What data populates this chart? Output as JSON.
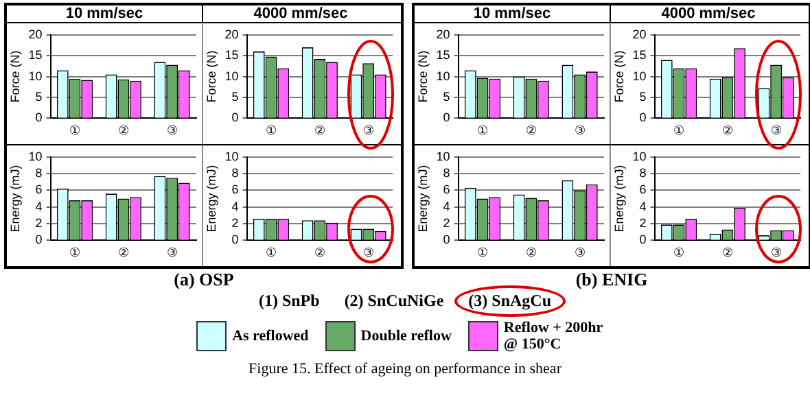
{
  "chart_data": [
    {
      "type": "bar",
      "title": "10 mm/sec",
      "ylabel": "Force (N)",
      "categories": [
        "①",
        "②",
        "③"
      ],
      "ylim": [
        0,
        20
      ],
      "yticks": [
        0,
        5,
        10,
        15,
        20
      ],
      "grid": "y",
      "legend": "bottom",
      "annotations": [
        "(1) SnPb",
        "(2) SnCuNiGe",
        "(3) SnAgCu",
        "Figure 15.  Effect of ageing on performance in shear"
      ],
      "series": [
        {
          "name": "As reflowed",
          "color": "#ccffff",
          "values": [
            11.5,
            10.5,
            13.5
          ]
        },
        {
          "name": "Double reflow",
          "color": "#66aa66",
          "values": [
            9.5,
            9.3,
            12.8
          ]
        },
        {
          "name": "Reflow + 200hr @ 150°C",
          "color": "#ff66ff",
          "values": [
            9.2,
            9,
            11.5
          ]
        }
      ]
    },
    {
      "type": "bar",
      "title": "4000 mm/sec",
      "ylabel": "Force (N)",
      "categories": [
        "①",
        "②",
        "③"
      ],
      "ylim": [
        0,
        20
      ],
      "yticks": [
        0,
        5,
        10,
        15,
        20
      ],
      "grid": "y",
      "series": [
        {
          "color": "#ccffff",
          "values": [
            16,
            17,
            10.5
          ]
        },
        {
          "color": "#66aa66",
          "values": [
            14.8,
            14.2,
            13.2
          ]
        },
        {
          "color": "#ff66ff",
          "values": [
            12,
            13.5,
            10.5
          ]
        }
      ]
    },
    {
      "type": "bar",
      "title": "10 mm/sec",
      "ylabel": "Force (N)",
      "categories": [
        "①",
        "②",
        "③"
      ],
      "ylim": [
        0,
        20
      ],
      "yticks": [
        0,
        5,
        10,
        15,
        20
      ],
      "grid": "y",
      "series": [
        {
          "color": "#ccffff",
          "values": [
            11.5,
            10,
            12.8
          ]
        },
        {
          "color": "#66aa66",
          "values": [
            9.7,
            9.5,
            10.5
          ]
        },
        {
          "color": "#ff66ff",
          "values": [
            9.5,
            9,
            11.2
          ]
        }
      ]
    },
    {
      "type": "bar",
      "title": "4000 mm/sec",
      "ylabel": "Force (N)",
      "categories": [
        "①",
        "②",
        "③"
      ],
      "ylim": [
        0,
        20
      ],
      "yticks": [
        0,
        5,
        10,
        15,
        20
      ],
      "grid": "y",
      "series": [
        {
          "color": "#ccffff",
          "values": [
            14,
            9.5,
            7.2
          ]
        },
        {
          "color": "#66aa66",
          "values": [
            12,
            9.8,
            12.8
          ]
        },
        {
          "color": "#ff66ff",
          "values": [
            12,
            16.8,
            9.8
          ]
        }
      ]
    },
    {
      "type": "bar",
      "ylabel": "Energy (mJ)",
      "categories": [
        "①",
        "②",
        "③"
      ],
      "ylim": [
        0,
        10
      ],
      "yticks": [
        0,
        2,
        4,
        6,
        8,
        10
      ],
      "grid": "y",
      "annotations": [
        "(a) OSP"
      ],
      "series": [
        {
          "color": "#ccffff",
          "values": [
            6.2,
            5.6,
            7.7
          ]
        },
        {
          "color": "#66aa66",
          "values": [
            4.8,
            5,
            7.5
          ]
        },
        {
          "color": "#ff66ff",
          "values": [
            4.8,
            5.2,
            6.9
          ]
        }
      ]
    },
    {
      "type": "bar",
      "ylabel": "Energy (mJ)",
      "categories": [
        "①",
        "②",
        "③"
      ],
      "ylim": [
        0,
        10
      ],
      "yticks": [
        0,
        2,
        4,
        6,
        8,
        10
      ],
      "grid": "y",
      "series": [
        {
          "color": "#ccffff",
          "values": [
            2.6,
            2.4,
            1.4
          ]
        },
        {
          "color": "#66aa66",
          "values": [
            2.6,
            2.4,
            1.4
          ]
        },
        {
          "color": "#ff66ff",
          "values": [
            2.6,
            2.1,
            1.1
          ]
        }
      ]
    },
    {
      "type": "bar",
      "ylabel": "Energy (mJ)",
      "categories": [
        "①",
        "②",
        "③"
      ],
      "ylim": [
        0,
        10
      ],
      "yticks": [
        0,
        2,
        4,
        6,
        8,
        10
      ],
      "grid": "y",
      "annotations": [
        "(b) ENIG"
      ],
      "series": [
        {
          "color": "#ccffff",
          "values": [
            6.3,
            5.5,
            7.2
          ]
        },
        {
          "color": "#66aa66",
          "values": [
            5,
            5.1,
            6
          ]
        },
        {
          "color": "#ff66ff",
          "values": [
            5.2,
            4.8,
            6.7
          ]
        }
      ]
    },
    {
      "type": "bar",
      "ylabel": "Energy (mJ)",
      "categories": [
        "①",
        "②",
        "③"
      ],
      "ylim": [
        0,
        10
      ],
      "yticks": [
        0,
        2,
        4,
        6,
        8,
        10
      ],
      "grid": "y",
      "series": [
        {
          "color": "#ccffff",
          "values": [
            1.9,
            0.8,
            0.6
          ]
        },
        {
          "color": "#66aa66",
          "values": [
            1.9,
            1.3,
            1.2
          ]
        },
        {
          "color": "#ff66ff",
          "values": [
            2.6,
            3.9,
            1.2
          ]
        }
      ]
    }
  ]
}
